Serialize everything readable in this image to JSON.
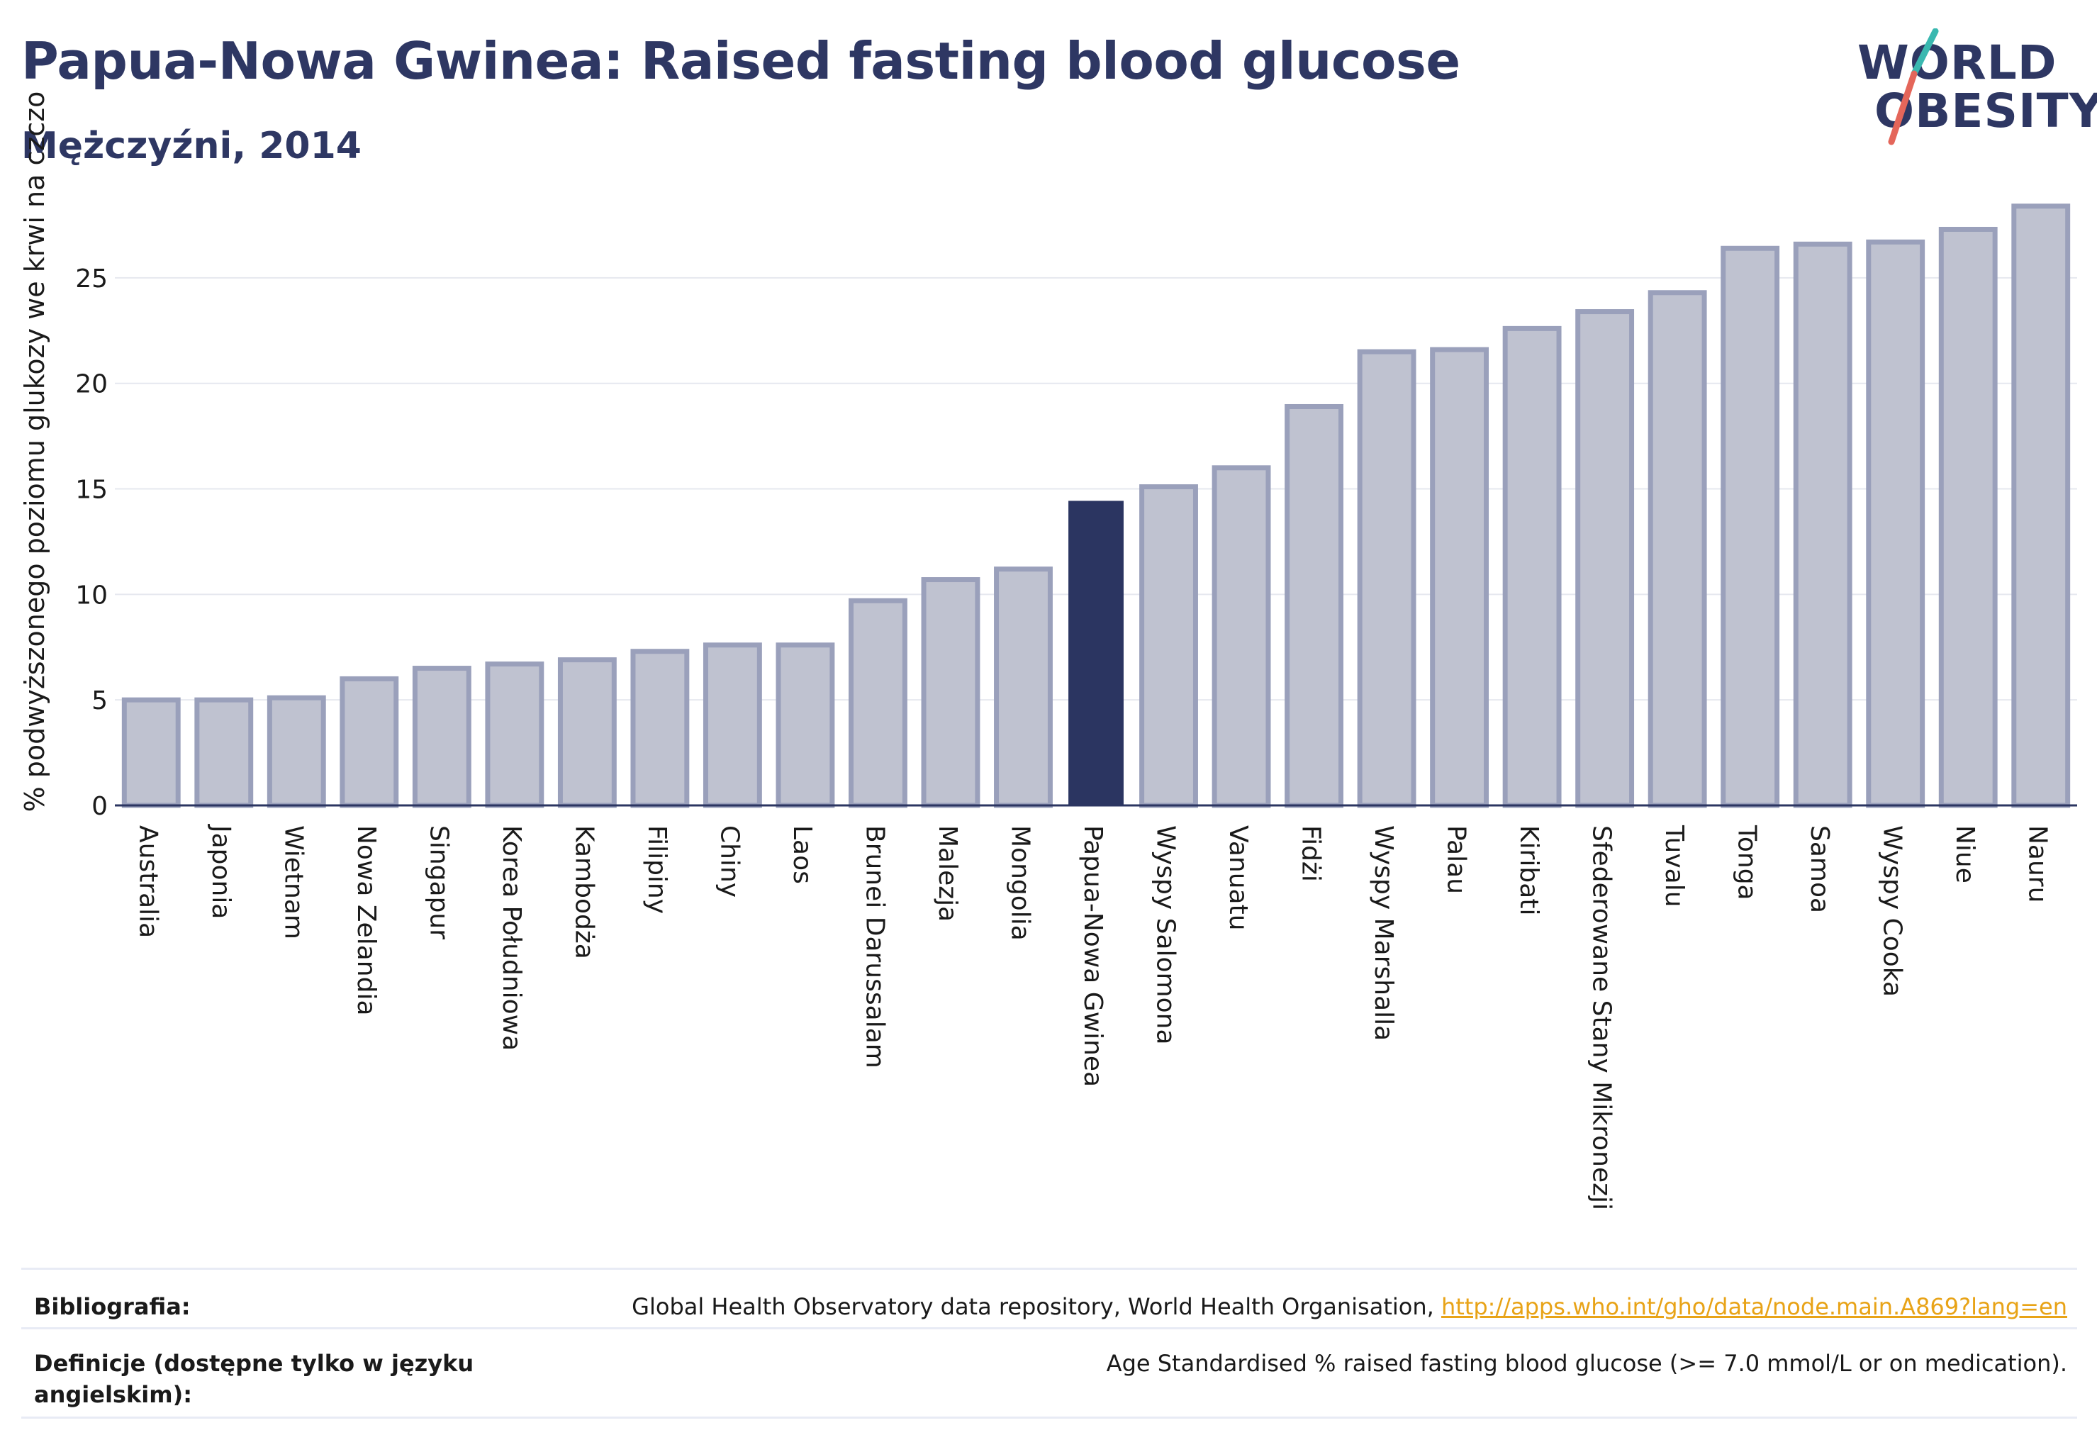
{
  "header": {
    "title": "Papua-Nowa Gwinea: Raised fasting blood glucose",
    "subtitle": "Mężczyźni, 2014"
  },
  "logo": {
    "line1": "WORLD",
    "line2": "OBESITY",
    "accent_colors": [
      "#3ab8b0",
      "#e4665a"
    ]
  },
  "chart_data": {
    "type": "bar",
    "ylabel": "% podwyższonego poziomu glukozy we krwi na czczo",
    "yticks": [
      0,
      5,
      10,
      15,
      20,
      25
    ],
    "ylim": [
      0,
      29.5
    ],
    "grid": true,
    "highlight": "Papua-Nowa Gwinea",
    "colors": {
      "bar": "#bfc2d0",
      "bar_border": "#9aa0bb",
      "highlight": "#2b3561",
      "axis": "#2b3561",
      "grid": "#e6e8ef"
    },
    "categories": [
      "Australia",
      "Japonia",
      "Wietnam",
      "Nowa Zelandia",
      "Singapur",
      "Korea Południowa",
      "Kambodża",
      "Filipiny",
      "Chiny",
      "Laos",
      "Brunei Darussalam",
      "Malezja",
      "Mongolia",
      "Papua-Nowa Gwinea",
      "Wyspy Salomona",
      "Vanuatu",
      "Fidżi",
      "Wyspy Marshalla",
      "Palau",
      "Kiribati",
      "Sfederowane Stany Mikronezji",
      "Tuvalu",
      "Tonga",
      "Samoa",
      "Wyspy Cooka",
      "Niue",
      "Nauru"
    ],
    "values": [
      5.0,
      5.0,
      5.1,
      6.0,
      6.5,
      6.7,
      6.9,
      7.3,
      7.6,
      7.6,
      9.7,
      10.7,
      11.2,
      14.4,
      15.1,
      16.0,
      18.9,
      21.5,
      21.6,
      22.6,
      23.4,
      24.3,
      26.4,
      26.6,
      26.7,
      27.3,
      28.4
    ]
  },
  "footer": {
    "bibliography_label": "Bibliografia:",
    "bibliography_text": "Global Health Observatory data repository, World Health Organisation, ",
    "bibliography_link": "http://apps.who.int/gho/data/node.main.A869?lang=en",
    "definition_label": "Definicje (dostępne tylko w języku angielskim):",
    "definition_text": "Age Standardised % raised fasting blood glucose (>= 7.0 mmol/L or on medication)."
  }
}
